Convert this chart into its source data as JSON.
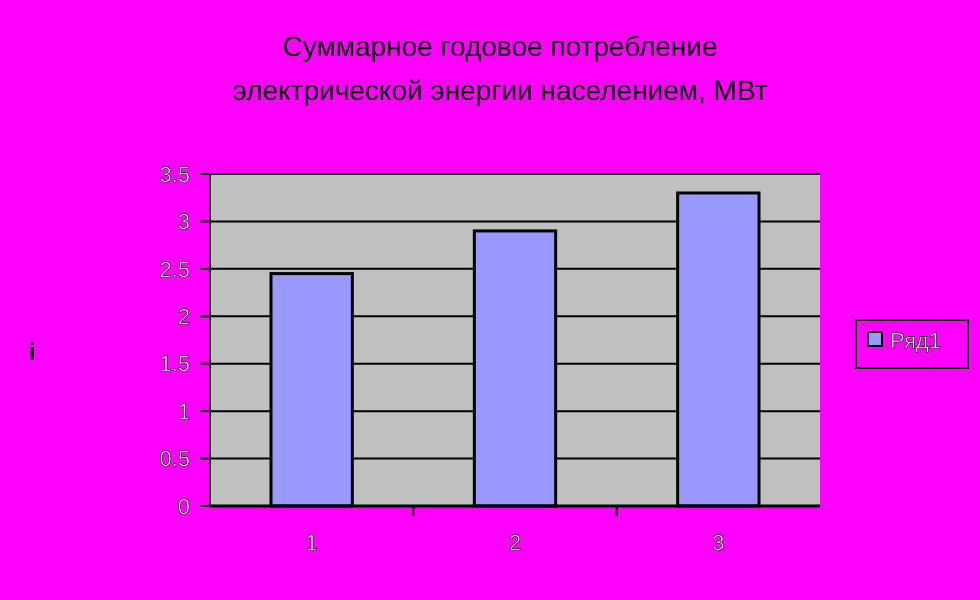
{
  "chart_data": {
    "type": "bar",
    "title": "Суммарное годовое потребление\nэлектрической энергии населением, МВт",
    "annotations": [
      "i"
    ],
    "categories": [
      "1",
      "2",
      "3"
    ],
    "series": [
      {
        "name": "Ряд1",
        "color": "#9999ff",
        "values": [
          2.45,
          2.9,
          3.3
        ]
      }
    ],
    "ylim": [
      0,
      3.5
    ],
    "yticks": [
      0,
      0.5,
      1,
      1.5,
      2,
      2.5,
      3,
      3.5
    ],
    "grid": "y",
    "legend": "right"
  }
}
